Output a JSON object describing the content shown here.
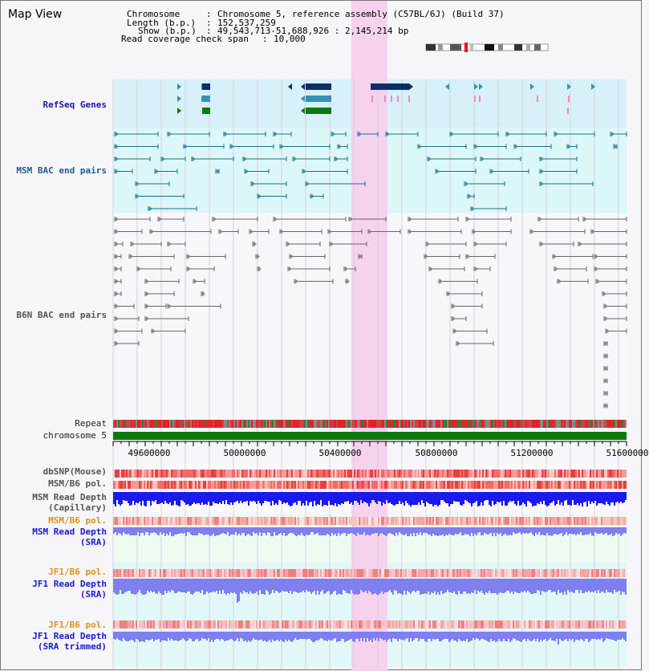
{
  "view": {
    "title": "Map View"
  },
  "info": {
    "chromosome_key": "Chromosome",
    "chromosome_val": "Chromosome 5, reference assembly (C57BL/6J) (Build 37)",
    "length_key": "Length (b.p.)",
    "length_val": "152,537,259",
    "show_key": "Show (b.p.)",
    "show_val": "49,543,713-51,688,926 : 2,145,214 bp",
    "span_key": "Read coverage check span",
    "span_val": "10,000"
  },
  "tracks": {
    "refseq": "RefSeq Genes",
    "msm_bac": "MSM BAC end pairs",
    "b6n_bac": "B6N BAC end pairs",
    "repeat": "Repeat",
    "chromosome": "chromosome 5",
    "dbsnp": "dbSNP(Mouse)",
    "msm_b6_pol": "MSM/B6 pol.",
    "msm_depth_cap_1": "MSM Read Depth",
    "msm_depth_cap_2": "(Capillary)",
    "msm_b6_pol_2": "MSM/B6 pol.",
    "msm_depth_sra_1": "MSM Read Depth",
    "msm_depth_sra_2": "(SRA)",
    "jf1_b6_pol": "JF1/B6 pol.",
    "jf1_depth_sra_1": "JF1 Read Depth",
    "jf1_depth_sra_2": "(SRA)",
    "jf1_b6_pol_2": "JF1/B6 pol.",
    "jf1_depth_trim_1": "JF1 Read Depth",
    "jf1_depth_trim_2": "(SRA trimmed)"
  },
  "axis": {
    "ticks": [
      "49600000",
      "50000000",
      "50400000",
      "50800000",
      "51200000",
      "51600000"
    ]
  },
  "colors": {
    "highlight": "#f7d2ee",
    "refseq_bg": "#d8f0fa",
    "msm_bg": "#dcf7f7",
    "gene_navy": "#0c2d6b",
    "gene_blue": "#3a8fb5",
    "gene_green": "#0a7a0a",
    "chromosome": "#0a7a0a",
    "msm_depth": "#1a1aee",
    "sra_depth": "#7f7ff0"
  }
}
